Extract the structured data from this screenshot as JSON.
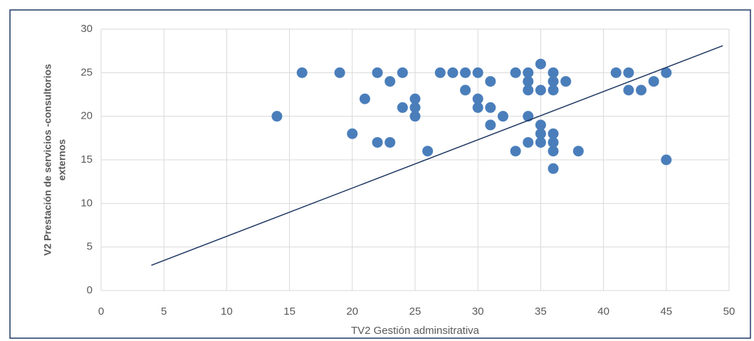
{
  "chart_data": {
    "type": "scatter",
    "xlabel": "TV2 Gestión adminsitrativa",
    "ylabel": [
      "V2 Prestación de servicios -consultorios",
      "externos"
    ],
    "xlim": [
      0,
      50
    ],
    "xticks": [
      0,
      5,
      10,
      15,
      20,
      25,
      30,
      35,
      40,
      45,
      50
    ],
    "ylim": [
      0,
      30
    ],
    "yticks": [
      0,
      5,
      10,
      15,
      20,
      25,
      30
    ],
    "grid": true,
    "series": [
      {
        "color": "#4a7ebb",
        "x": [
          14,
          16,
          19,
          20,
          21,
          22,
          22,
          23,
          23,
          24,
          24,
          25,
          25,
          25,
          26,
          27,
          28,
          29,
          29,
          30,
          30,
          30,
          31,
          31,
          31,
          32,
          33,
          33,
          34,
          34,
          34,
          34,
          34,
          35,
          35,
          35,
          35,
          35,
          36,
          36,
          36,
          36,
          36,
          36,
          36,
          37,
          38,
          41,
          42,
          42,
          43,
          44,
          45,
          45
        ],
        "values": [
          20,
          25,
          25,
          18,
          22,
          25,
          17,
          24,
          17,
          25,
          21,
          22,
          21,
          20,
          16,
          25,
          25,
          25,
          23,
          25,
          22,
          21,
          24,
          21,
          19,
          20,
          25,
          16,
          25,
          24,
          23,
          20,
          17,
          26,
          23,
          19,
          18,
          17,
          25,
          24,
          23,
          18,
          17,
          16,
          14,
          24,
          16,
          25,
          25,
          23,
          23,
          24,
          25,
          15
        ]
      }
    ],
    "trendline": {
      "color": "#1f3864",
      "x": [
        4.0,
        49.5
      ],
      "values": [
        2.9,
        28.1
      ]
    }
  }
}
